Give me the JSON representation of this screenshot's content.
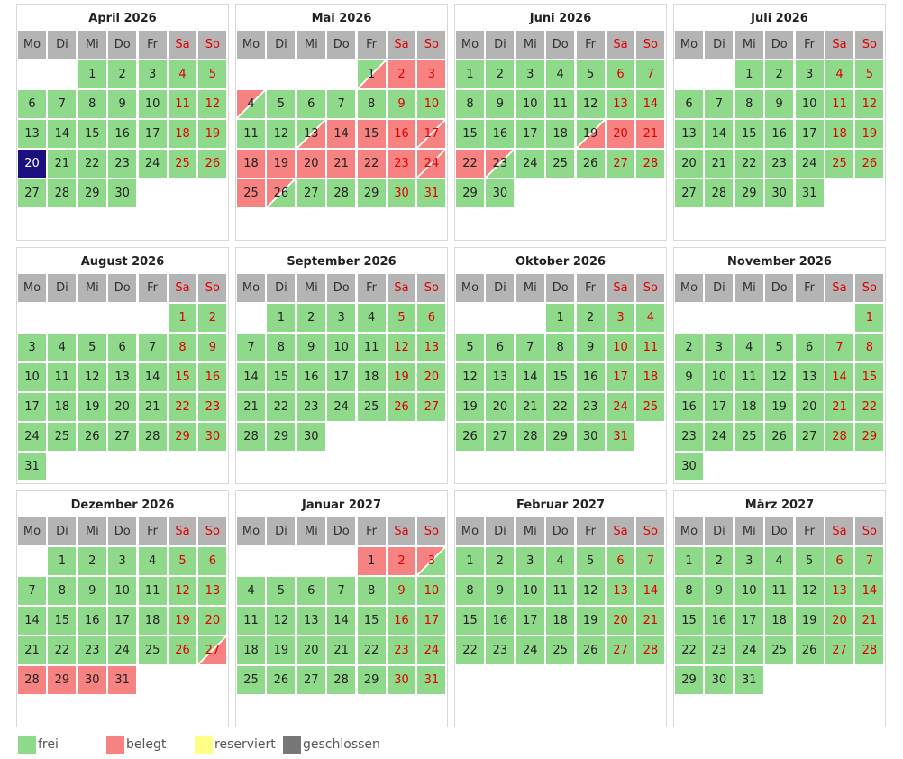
{
  "weekdays": [
    "Mo",
    "Di",
    "Mi",
    "Do",
    "Fr",
    "Sa",
    "So"
  ],
  "legend": [
    {
      "label": "frei",
      "color": "#8fd98a"
    },
    {
      "label": "belegt",
      "color": "#f78282"
    },
    {
      "label": "reserviert",
      "color": "#ffff88"
    },
    {
      "label": "geschlossen",
      "color": "#777777"
    }
  ],
  "months": [
    {
      "title": "April 2026",
      "today": 20,
      "weeks": [
        [
          null,
          null,
          1,
          2,
          3,
          4,
          5
        ],
        [
          6,
          7,
          8,
          9,
          10,
          11,
          12
        ],
        [
          13,
          14,
          15,
          16,
          17,
          18,
          19
        ],
        [
          20,
          21,
          22,
          23,
          24,
          25,
          26
        ],
        [
          27,
          28,
          29,
          30
        ]
      ]
    },
    {
      "title": "Mai 2026",
      "arrival": [
        1,
        13
      ],
      "booked": [
        2,
        3,
        14,
        15,
        16,
        18,
        19,
        20,
        21,
        22,
        23,
        25
      ],
      "departure": [
        4,
        26
      ],
      "changeover": [
        17,
        24
      ],
      "weeks": [
        [
          null,
          null,
          null,
          null,
          1,
          2,
          3
        ],
        [
          4,
          5,
          6,
          7,
          8,
          9,
          10
        ],
        [
          11,
          12,
          13,
          14,
          15,
          16,
          17
        ],
        [
          18,
          19,
          20,
          21,
          22,
          23,
          24
        ],
        [
          25,
          26,
          27,
          28,
          29,
          30,
          31
        ]
      ]
    },
    {
      "title": "Juni 2026",
      "arrival": [
        19
      ],
      "booked": [
        20,
        21,
        22
      ],
      "departure": [
        23
      ],
      "weeks": [
        [
          1,
          2,
          3,
          4,
          5,
          6,
          7
        ],
        [
          8,
          9,
          10,
          11,
          12,
          13,
          14
        ],
        [
          15,
          16,
          17,
          18,
          19,
          20,
          21
        ],
        [
          22,
          23,
          24,
          25,
          26,
          27,
          28
        ],
        [
          29,
          30
        ]
      ]
    },
    {
      "title": "Juli 2026",
      "weeks": [
        [
          null,
          null,
          1,
          2,
          3,
          4,
          5
        ],
        [
          6,
          7,
          8,
          9,
          10,
          11,
          12
        ],
        [
          13,
          14,
          15,
          16,
          17,
          18,
          19
        ],
        [
          20,
          21,
          22,
          23,
          24,
          25,
          26
        ],
        [
          27,
          28,
          29,
          30,
          31
        ]
      ]
    },
    {
      "title": "August 2026",
      "weeks": [
        [
          null,
          null,
          null,
          null,
          null,
          1,
          2
        ],
        [
          3,
          4,
          5,
          6,
          7,
          8,
          9
        ],
        [
          10,
          11,
          12,
          13,
          14,
          15,
          16
        ],
        [
          17,
          18,
          19,
          20,
          21,
          22,
          23
        ],
        [
          24,
          25,
          26,
          27,
          28,
          29,
          30
        ],
        [
          31
        ]
      ]
    },
    {
      "title": "September 2026",
      "weeks": [
        [
          null,
          1,
          2,
          3,
          4,
          5,
          6
        ],
        [
          7,
          8,
          9,
          10,
          11,
          12,
          13
        ],
        [
          14,
          15,
          16,
          17,
          18,
          19,
          20
        ],
        [
          21,
          22,
          23,
          24,
          25,
          26,
          27
        ],
        [
          28,
          29,
          30
        ]
      ]
    },
    {
      "title": "Oktober 2026",
      "weeks": [
        [
          null,
          null,
          null,
          1,
          2,
          3,
          4
        ],
        [
          5,
          6,
          7,
          8,
          9,
          10,
          11
        ],
        [
          12,
          13,
          14,
          15,
          16,
          17,
          18
        ],
        [
          19,
          20,
          21,
          22,
          23,
          24,
          25
        ],
        [
          26,
          27,
          28,
          29,
          30,
          31
        ]
      ]
    },
    {
      "title": "November 2026",
      "weeks": [
        [
          null,
          null,
          null,
          null,
          null,
          null,
          1
        ],
        [
          2,
          3,
          4,
          5,
          6,
          7,
          8
        ],
        [
          9,
          10,
          11,
          12,
          13,
          14,
          15
        ],
        [
          16,
          17,
          18,
          19,
          20,
          21,
          22
        ],
        [
          23,
          24,
          25,
          26,
          27,
          28,
          29
        ],
        [
          30
        ]
      ]
    },
    {
      "title": "Dezember 2026",
      "arrival": [
        27
      ],
      "booked": [
        28,
        29,
        30,
        31
      ],
      "weeks": [
        [
          null,
          1,
          2,
          3,
          4,
          5,
          6
        ],
        [
          7,
          8,
          9,
          10,
          11,
          12,
          13
        ],
        [
          14,
          15,
          16,
          17,
          18,
          19,
          20
        ],
        [
          21,
          22,
          23,
          24,
          25,
          26,
          27
        ],
        [
          28,
          29,
          30,
          31
        ]
      ]
    },
    {
      "title": "Januar 2027",
      "booked": [
        1,
        2
      ],
      "departure": [
        3
      ],
      "weeks": [
        [
          null,
          null,
          null,
          null,
          1,
          2,
          3
        ],
        [
          4,
          5,
          6,
          7,
          8,
          9,
          10
        ],
        [
          11,
          12,
          13,
          14,
          15,
          16,
          17
        ],
        [
          18,
          19,
          20,
          21,
          22,
          23,
          24
        ],
        [
          25,
          26,
          27,
          28,
          29,
          30,
          31
        ]
      ]
    },
    {
      "title": "Februar 2027",
      "weeks": [
        [
          1,
          2,
          3,
          4,
          5,
          6,
          7
        ],
        [
          8,
          9,
          10,
          11,
          12,
          13,
          14
        ],
        [
          15,
          16,
          17,
          18,
          19,
          20,
          21
        ],
        [
          22,
          23,
          24,
          25,
          26,
          27,
          28
        ]
      ]
    },
    {
      "title": "März 2027",
      "weeks": [
        [
          1,
          2,
          3,
          4,
          5,
          6,
          7
        ],
        [
          8,
          9,
          10,
          11,
          12,
          13,
          14
        ],
        [
          15,
          16,
          17,
          18,
          19,
          20,
          21
        ],
        [
          22,
          23,
          24,
          25,
          26,
          27,
          28
        ],
        [
          29,
          30,
          31
        ]
      ]
    }
  ]
}
